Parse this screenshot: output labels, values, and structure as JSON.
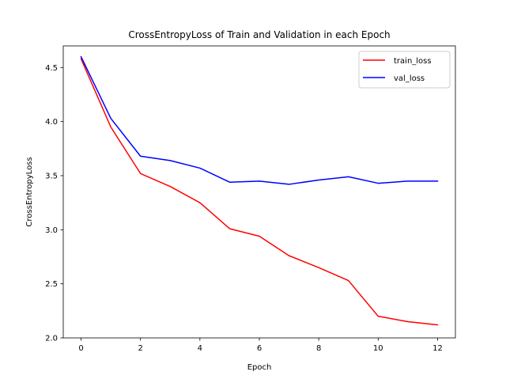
{
  "chart_data": {
    "type": "line",
    "title": "CrossEntropyLoss of Train and Validation in each Epoch",
    "xlabel": "Epoch",
    "ylabel": "CrossEntropyLoss",
    "xlim": [
      -0.6,
      12.6
    ],
    "ylim": [
      2.0,
      4.7
    ],
    "xticks": [
      0,
      2,
      4,
      6,
      8,
      10,
      12
    ],
    "yticks": [
      2.0,
      2.5,
      3.0,
      3.5,
      4.0,
      4.5
    ],
    "ytick_labels": [
      "2.0",
      "2.5",
      "3.0",
      "3.5",
      "4.0",
      "4.5"
    ],
    "grid": false,
    "legend_position": "top-right",
    "x": [
      0,
      1,
      2,
      3,
      4,
      5,
      6,
      7,
      8,
      9,
      10,
      11,
      12
    ],
    "series": [
      {
        "name": "train_loss",
        "color": "#ff0000",
        "values": [
          4.58,
          3.95,
          3.52,
          3.4,
          3.25,
          3.01,
          2.94,
          2.76,
          2.65,
          2.53,
          2.2,
          2.15,
          2.12
        ]
      },
      {
        "name": "val_loss",
        "color": "#0000ff",
        "values": [
          4.6,
          4.03,
          3.68,
          3.64,
          3.57,
          3.44,
          3.45,
          3.42,
          3.46,
          3.49,
          3.43,
          3.45,
          3.45
        ]
      }
    ]
  }
}
